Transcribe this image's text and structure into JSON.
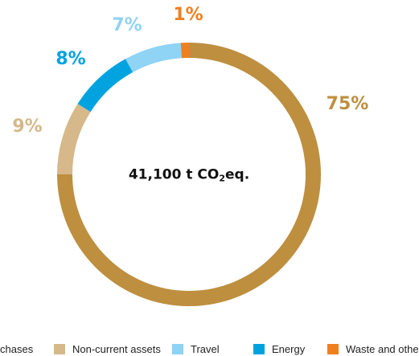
{
  "chart_data": {
    "type": "pie",
    "style": "donut",
    "center_label": {
      "value": "41,100 t CO",
      "subscript": "2",
      "suffix": "eq."
    },
    "slices": [
      {
        "name": "Purchases",
        "value": 75,
        "label": "75%",
        "color": "#bd8f3f"
      },
      {
        "name": "Non-current assets",
        "value": 9,
        "label": "9%",
        "color": "#d6b88a"
      },
      {
        "name": "Energy",
        "value": 8,
        "label": "8%",
        "color": "#00a3e0"
      },
      {
        "name": "Travel",
        "value": 7,
        "label": "7%",
        "color": "#8fd3f5"
      },
      {
        "name": "Waste and other",
        "value": 1,
        "label": "1%",
        "color": "#f07f1f"
      }
    ],
    "legend": {
      "placement": "bottom",
      "items": [
        {
          "label": "chases",
          "color": "#bd8f3f"
        },
        {
          "label": "Non-current assets",
          "color": "#d6b88a"
        },
        {
          "label": "Travel",
          "color": "#8fd3f5"
        },
        {
          "label": "Energy",
          "color": "#00a3e0"
        },
        {
          "label": "Waste and other",
          "color": "#f07f1f"
        }
      ]
    }
  }
}
